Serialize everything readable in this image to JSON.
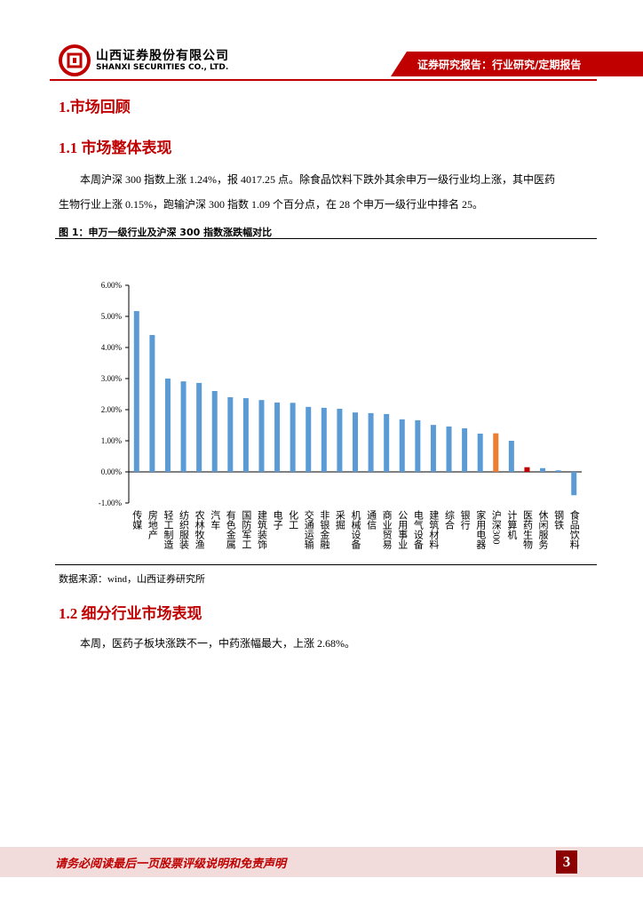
{
  "header": {
    "company_cn": "山西证券股份有限公司",
    "company_en": "SHANXI SECURITIES CO., LTD.",
    "report_type": "证券研究报告：行业研究/定期报告"
  },
  "sections": [
    {
      "title": "1.市场回顾"
    },
    {
      "title": "1.1 市场整体表现",
      "paragraph": "本周沪深 300 指数上涨 1.24%，报 4017.25 点。除食品饮料下跌外其余申万一级行业均上涨，其中医药生物行业上涨 0.15%，跑输沪深 300 指数 1.09 个百分点，在 28 个申万一级行业中排名 25。"
    },
    {
      "title": "1.2 细分行业市场表现",
      "paragraph": "本周，医药子板块涨跌不一，中药涨幅最大，上涨 2.68%。"
    }
  ],
  "figure": {
    "caption": "图 1：申万一级行业及沪深 300 指数涨跌幅对比",
    "source": "数据来源：wind，山西证券研究所"
  },
  "chart_data": {
    "type": "bar",
    "categories": [
      "传媒",
      "房地产",
      "轻工制造",
      "纺织服装",
      "农林牧渔",
      "汽车",
      "有色金属",
      "国防军工",
      "建筑装饰",
      "电子",
      "化工",
      "交通运输",
      "非银金融",
      "采掘",
      "机械设备",
      "通信",
      "商业贸易",
      "公用事业",
      "电气设备",
      "建筑材料",
      "综合",
      "银行",
      "家用电器",
      "沪深300",
      "计算机",
      "医药生物",
      "休闲服务",
      "钢铁",
      "食品饮料"
    ],
    "values": [
      5.17,
      4.4,
      3.0,
      2.91,
      2.86,
      2.6,
      2.4,
      2.37,
      2.31,
      2.23,
      2.22,
      2.09,
      2.06,
      2.03,
      1.91,
      1.89,
      1.86,
      1.69,
      1.66,
      1.51,
      1.46,
      1.4,
      1.23,
      1.24,
      1.0,
      0.15,
      0.12,
      0.05,
      -0.75
    ],
    "colors": [
      "#5b9bd5",
      "#5b9bd5",
      "#5b9bd5",
      "#5b9bd5",
      "#5b9bd5",
      "#5b9bd5",
      "#5b9bd5",
      "#5b9bd5",
      "#5b9bd5",
      "#5b9bd5",
      "#5b9bd5",
      "#5b9bd5",
      "#5b9bd5",
      "#5b9bd5",
      "#5b9bd5",
      "#5b9bd5",
      "#5b9bd5",
      "#5b9bd5",
      "#5b9bd5",
      "#5b9bd5",
      "#5b9bd5",
      "#5b9bd5",
      "#5b9bd5",
      "#ed7d31",
      "#5b9bd5",
      "#c00000",
      "#5b9bd5",
      "#5b9bd5",
      "#5b9bd5"
    ],
    "ylim": [
      -1,
      6
    ],
    "yticks": [
      {
        "value": -1,
        "label": "-1.00%"
      },
      {
        "value": 0,
        "label": "0.00%"
      },
      {
        "value": 1,
        "label": "1.00%"
      },
      {
        "value": 2,
        "label": "2.00%"
      },
      {
        "value": 3,
        "label": "3.00%"
      },
      {
        "value": 4,
        "label": "4.00%"
      },
      {
        "value": 5,
        "label": "5.00%"
      },
      {
        "value": 6,
        "label": "6.00%"
      }
    ]
  },
  "footer": {
    "disclaimer": "请务必阅读最后一页股票评级说明和免责声明",
    "page_number": "3"
  }
}
